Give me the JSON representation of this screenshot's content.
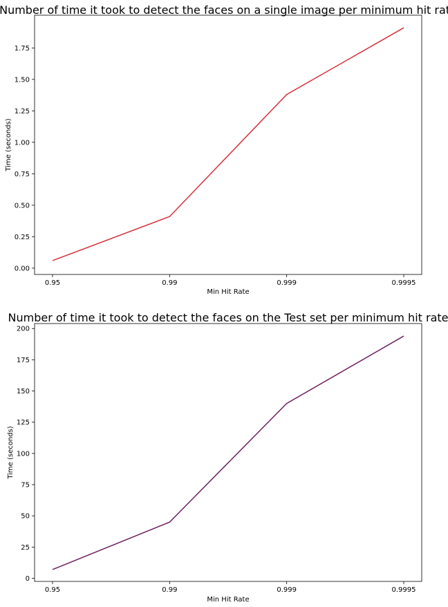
{
  "chart_data": [
    {
      "type": "line",
      "title": "Number of time it took to detect the faces on a single image per minimum hit rate",
      "xlabel": "Min Hit Rate",
      "ylabel": "Time (seconds)",
      "categories": [
        "0.95",
        "0.99",
        "0.999",
        "0.9995"
      ],
      "series": [
        {
          "values": [
            0.06,
            0.41,
            1.38,
            1.91
          ],
          "color": "#d62f3a"
        }
      ],
      "ylim": [
        -0.05,
        2.01
      ],
      "yticks": [
        0.0,
        0.25,
        0.5,
        0.75,
        1.0,
        1.25,
        1.5,
        1.75
      ],
      "ytick_labels": [
        "0.00",
        "0.25",
        "0.50",
        "0.75",
        "1.00",
        "1.25",
        "1.50",
        "1.75"
      ],
      "grid": false
    },
    {
      "type": "line",
      "title": "Number of time it took to detect the faces on the Test set per minimum hit rate",
      "xlabel": "Min Hit Rate",
      "ylabel": "Time (seconds)",
      "categories": [
        "0.95",
        "0.99",
        "0.999",
        "0.9995"
      ],
      "series": [
        {
          "values": [
            7,
            45,
            140,
            194
          ],
          "color": "#6e1f5e"
        }
      ],
      "ylim": [
        -2.5,
        204
      ],
      "yticks": [
        0,
        25,
        50,
        75,
        100,
        125,
        150,
        175,
        200
      ],
      "ytick_labels": [
        "0",
        "25",
        "50",
        "75",
        "100",
        "125",
        "150",
        "175",
        "200"
      ],
      "grid": false
    }
  ]
}
